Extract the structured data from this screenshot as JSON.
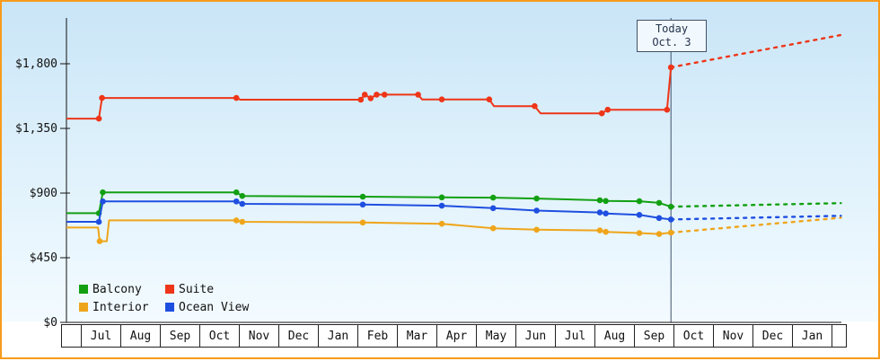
{
  "today_box": {
    "line1": "Today",
    "line2": "Oct. 3"
  },
  "colors": {
    "balcony": "#12a012",
    "suite": "#ee3518",
    "interior": "#efa51a",
    "ocean_view": "#1f4fe0",
    "frame_border": "#f79b1d",
    "today_line": "#40506a",
    "axis": "#111111"
  },
  "chart_data": {
    "type": "line",
    "title": "",
    "xlabel": "",
    "ylabel": "",
    "x_axis": {
      "unit": "months",
      "tick_labels": [
        "Jul",
        "Aug",
        "Sep",
        "Oct",
        "Nov",
        "Dec",
        "Jan",
        "Feb",
        "Mar",
        "Apr",
        "May",
        "Jun",
        "Jul",
        "Aug",
        "Sep",
        "Oct",
        "Nov",
        "Dec",
        "Jan"
      ],
      "range": [
        0,
        19.6
      ],
      "first_tick_position": 0.86
    },
    "y_axis": {
      "ticks": [
        0,
        450,
        900,
        1350,
        1800
      ],
      "tick_labels": [
        "$0",
        "$450",
        "$900",
        "$1,350",
        "$1,800"
      ],
      "range": [
        0,
        2118
      ]
    },
    "today": {
      "position": 15.3,
      "label_line1": "Today",
      "label_line2": "Oct. 3"
    },
    "grid": false,
    "legend_position": "bottom-left",
    "legend": [
      {
        "label": "Balcony",
        "color": "#12a012"
      },
      {
        "label": "Suite",
        "color": "#ee3518"
      },
      {
        "label": "Interior",
        "color": "#efa51a"
      },
      {
        "label": "Ocean View",
        "color": "#1f4fe0"
      }
    ],
    "series": [
      {
        "name": "Balcony",
        "color": "#12a012",
        "line": [
          [
            0,
            760
          ],
          [
            0.82,
            760
          ],
          [
            0.92,
            905
          ],
          [
            4.3,
            905
          ],
          [
            4.45,
            880
          ],
          [
            7.5,
            875
          ],
          [
            9.5,
            870
          ],
          [
            10.8,
            868
          ],
          [
            11.9,
            862
          ],
          [
            13.5,
            850
          ],
          [
            13.65,
            845
          ],
          [
            14.5,
            843
          ],
          [
            15.0,
            832
          ],
          [
            15.3,
            805
          ]
        ],
        "markers": [
          [
            0.82,
            760
          ],
          [
            0.92,
            905
          ],
          [
            4.3,
            905
          ],
          [
            4.45,
            880
          ],
          [
            7.5,
            875
          ],
          [
            9.5,
            870
          ],
          [
            10.8,
            868
          ],
          [
            11.9,
            862
          ],
          [
            13.5,
            850
          ],
          [
            13.65,
            845
          ],
          [
            14.5,
            843
          ],
          [
            15.0,
            832
          ],
          [
            15.3,
            805
          ]
        ],
        "forecast": [
          [
            15.3,
            805
          ],
          [
            19.6,
            830
          ]
        ]
      },
      {
        "name": "Interior",
        "color": "#efa51a",
        "line": [
          [
            0,
            660
          ],
          [
            0.8,
            660
          ],
          [
            0.84,
            565
          ],
          [
            1.02,
            565
          ],
          [
            1.08,
            710
          ],
          [
            4.3,
            710
          ],
          [
            4.45,
            700
          ],
          [
            7.5,
            695
          ],
          [
            9.5,
            686
          ],
          [
            10.8,
            655
          ],
          [
            11.9,
            645
          ],
          [
            13.5,
            640
          ],
          [
            13.65,
            630
          ],
          [
            14.5,
            622
          ],
          [
            15.0,
            615
          ],
          [
            15.3,
            625
          ]
        ],
        "markers": [
          [
            0.84,
            565
          ],
          [
            4.3,
            710
          ],
          [
            4.45,
            700
          ],
          [
            7.5,
            695
          ],
          [
            9.5,
            686
          ],
          [
            10.8,
            655
          ],
          [
            11.9,
            645
          ],
          [
            13.5,
            640
          ],
          [
            13.65,
            630
          ],
          [
            14.5,
            622
          ],
          [
            15.0,
            615
          ],
          [
            15.3,
            625
          ]
        ],
        "forecast": [
          [
            15.3,
            625
          ],
          [
            19.6,
            728
          ]
        ]
      },
      {
        "name": "Ocean View",
        "color": "#1f4fe0",
        "line": [
          [
            0,
            700
          ],
          [
            0.82,
            700
          ],
          [
            0.92,
            842
          ],
          [
            4.3,
            842
          ],
          [
            4.45,
            825
          ],
          [
            7.5,
            820
          ],
          [
            9.5,
            812
          ],
          [
            10.8,
            795
          ],
          [
            11.9,
            778
          ],
          [
            13.5,
            765
          ],
          [
            13.65,
            758
          ],
          [
            14.5,
            748
          ],
          [
            15.0,
            726
          ],
          [
            15.3,
            716
          ]
        ],
        "markers": [
          [
            0.82,
            700
          ],
          [
            0.92,
            842
          ],
          [
            4.3,
            842
          ],
          [
            4.45,
            825
          ],
          [
            7.5,
            820
          ],
          [
            9.5,
            812
          ],
          [
            10.8,
            795
          ],
          [
            11.9,
            778
          ],
          [
            13.5,
            765
          ],
          [
            13.65,
            758
          ],
          [
            14.5,
            748
          ],
          [
            15.0,
            726
          ],
          [
            15.3,
            716
          ]
        ],
        "forecast": [
          [
            15.3,
            716
          ],
          [
            19.6,
            742
          ]
        ]
      },
      {
        "name": "Suite",
        "color": "#ee3518",
        "line": [
          [
            0,
            1418
          ],
          [
            0.82,
            1418
          ],
          [
            0.9,
            1562
          ],
          [
            4.3,
            1562
          ],
          [
            4.4,
            1550
          ],
          [
            7.45,
            1550
          ],
          [
            7.55,
            1585
          ],
          [
            7.7,
            1560
          ],
          [
            7.85,
            1585
          ],
          [
            8.05,
            1585
          ],
          [
            8.9,
            1585
          ],
          [
            9.0,
            1552
          ],
          [
            9.5,
            1552
          ],
          [
            10.7,
            1552
          ],
          [
            10.82,
            1505
          ],
          [
            11.85,
            1505
          ],
          [
            12.0,
            1455
          ],
          [
            13.55,
            1455
          ],
          [
            13.7,
            1480
          ],
          [
            15.2,
            1480
          ],
          [
            15.3,
            1775
          ]
        ],
        "markers": [
          [
            0.82,
            1418
          ],
          [
            0.9,
            1562
          ],
          [
            4.3,
            1562
          ],
          [
            7.45,
            1550
          ],
          [
            7.55,
            1585
          ],
          [
            7.7,
            1560
          ],
          [
            7.85,
            1585
          ],
          [
            8.05,
            1585
          ],
          [
            8.9,
            1585
          ],
          [
            9.5,
            1552
          ],
          [
            10.7,
            1552
          ],
          [
            11.85,
            1505
          ],
          [
            13.55,
            1455
          ],
          [
            13.7,
            1480
          ],
          [
            15.2,
            1480
          ],
          [
            15.3,
            1775
          ]
        ],
        "forecast": [
          [
            15.3,
            1775
          ],
          [
            19.6,
            2000
          ]
        ]
      }
    ]
  }
}
